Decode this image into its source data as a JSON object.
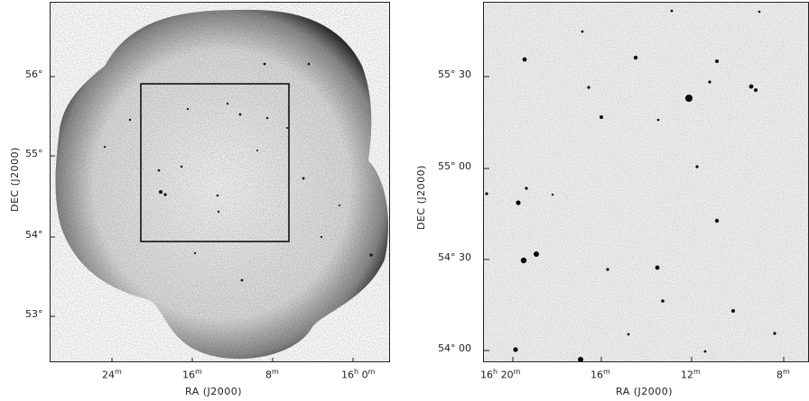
{
  "left_panel": {
    "y_label": "DEC (J2000)",
    "x_label": "RA (J2000)",
    "y_ticks": [
      "56°",
      "55°",
      "54°",
      "53°"
    ],
    "x_ticks": [
      {
        "value": "24",
        "unit": "m"
      },
      {
        "value": "16",
        "unit": "m"
      },
      {
        "value": "8",
        "unit": "m"
      },
      {
        "value": "16",
        "unit": "h",
        "extra": " 0",
        "unit2": "m"
      }
    ]
  },
  "right_panel": {
    "y_label": "DEC (J2000)",
    "x_label": "RA (J2000)",
    "y_ticks": [
      "55° 30",
      "55° 00",
      "54° 30",
      "54° 00"
    ],
    "x_ticks": [
      {
        "value": "16",
        "unit": "h",
        "extra": " 20",
        "unit2": "m"
      },
      {
        "value": "16",
        "unit": "m"
      },
      {
        "value": "12",
        "unit": "m"
      },
      {
        "value": "8",
        "unit": "m"
      }
    ]
  }
}
